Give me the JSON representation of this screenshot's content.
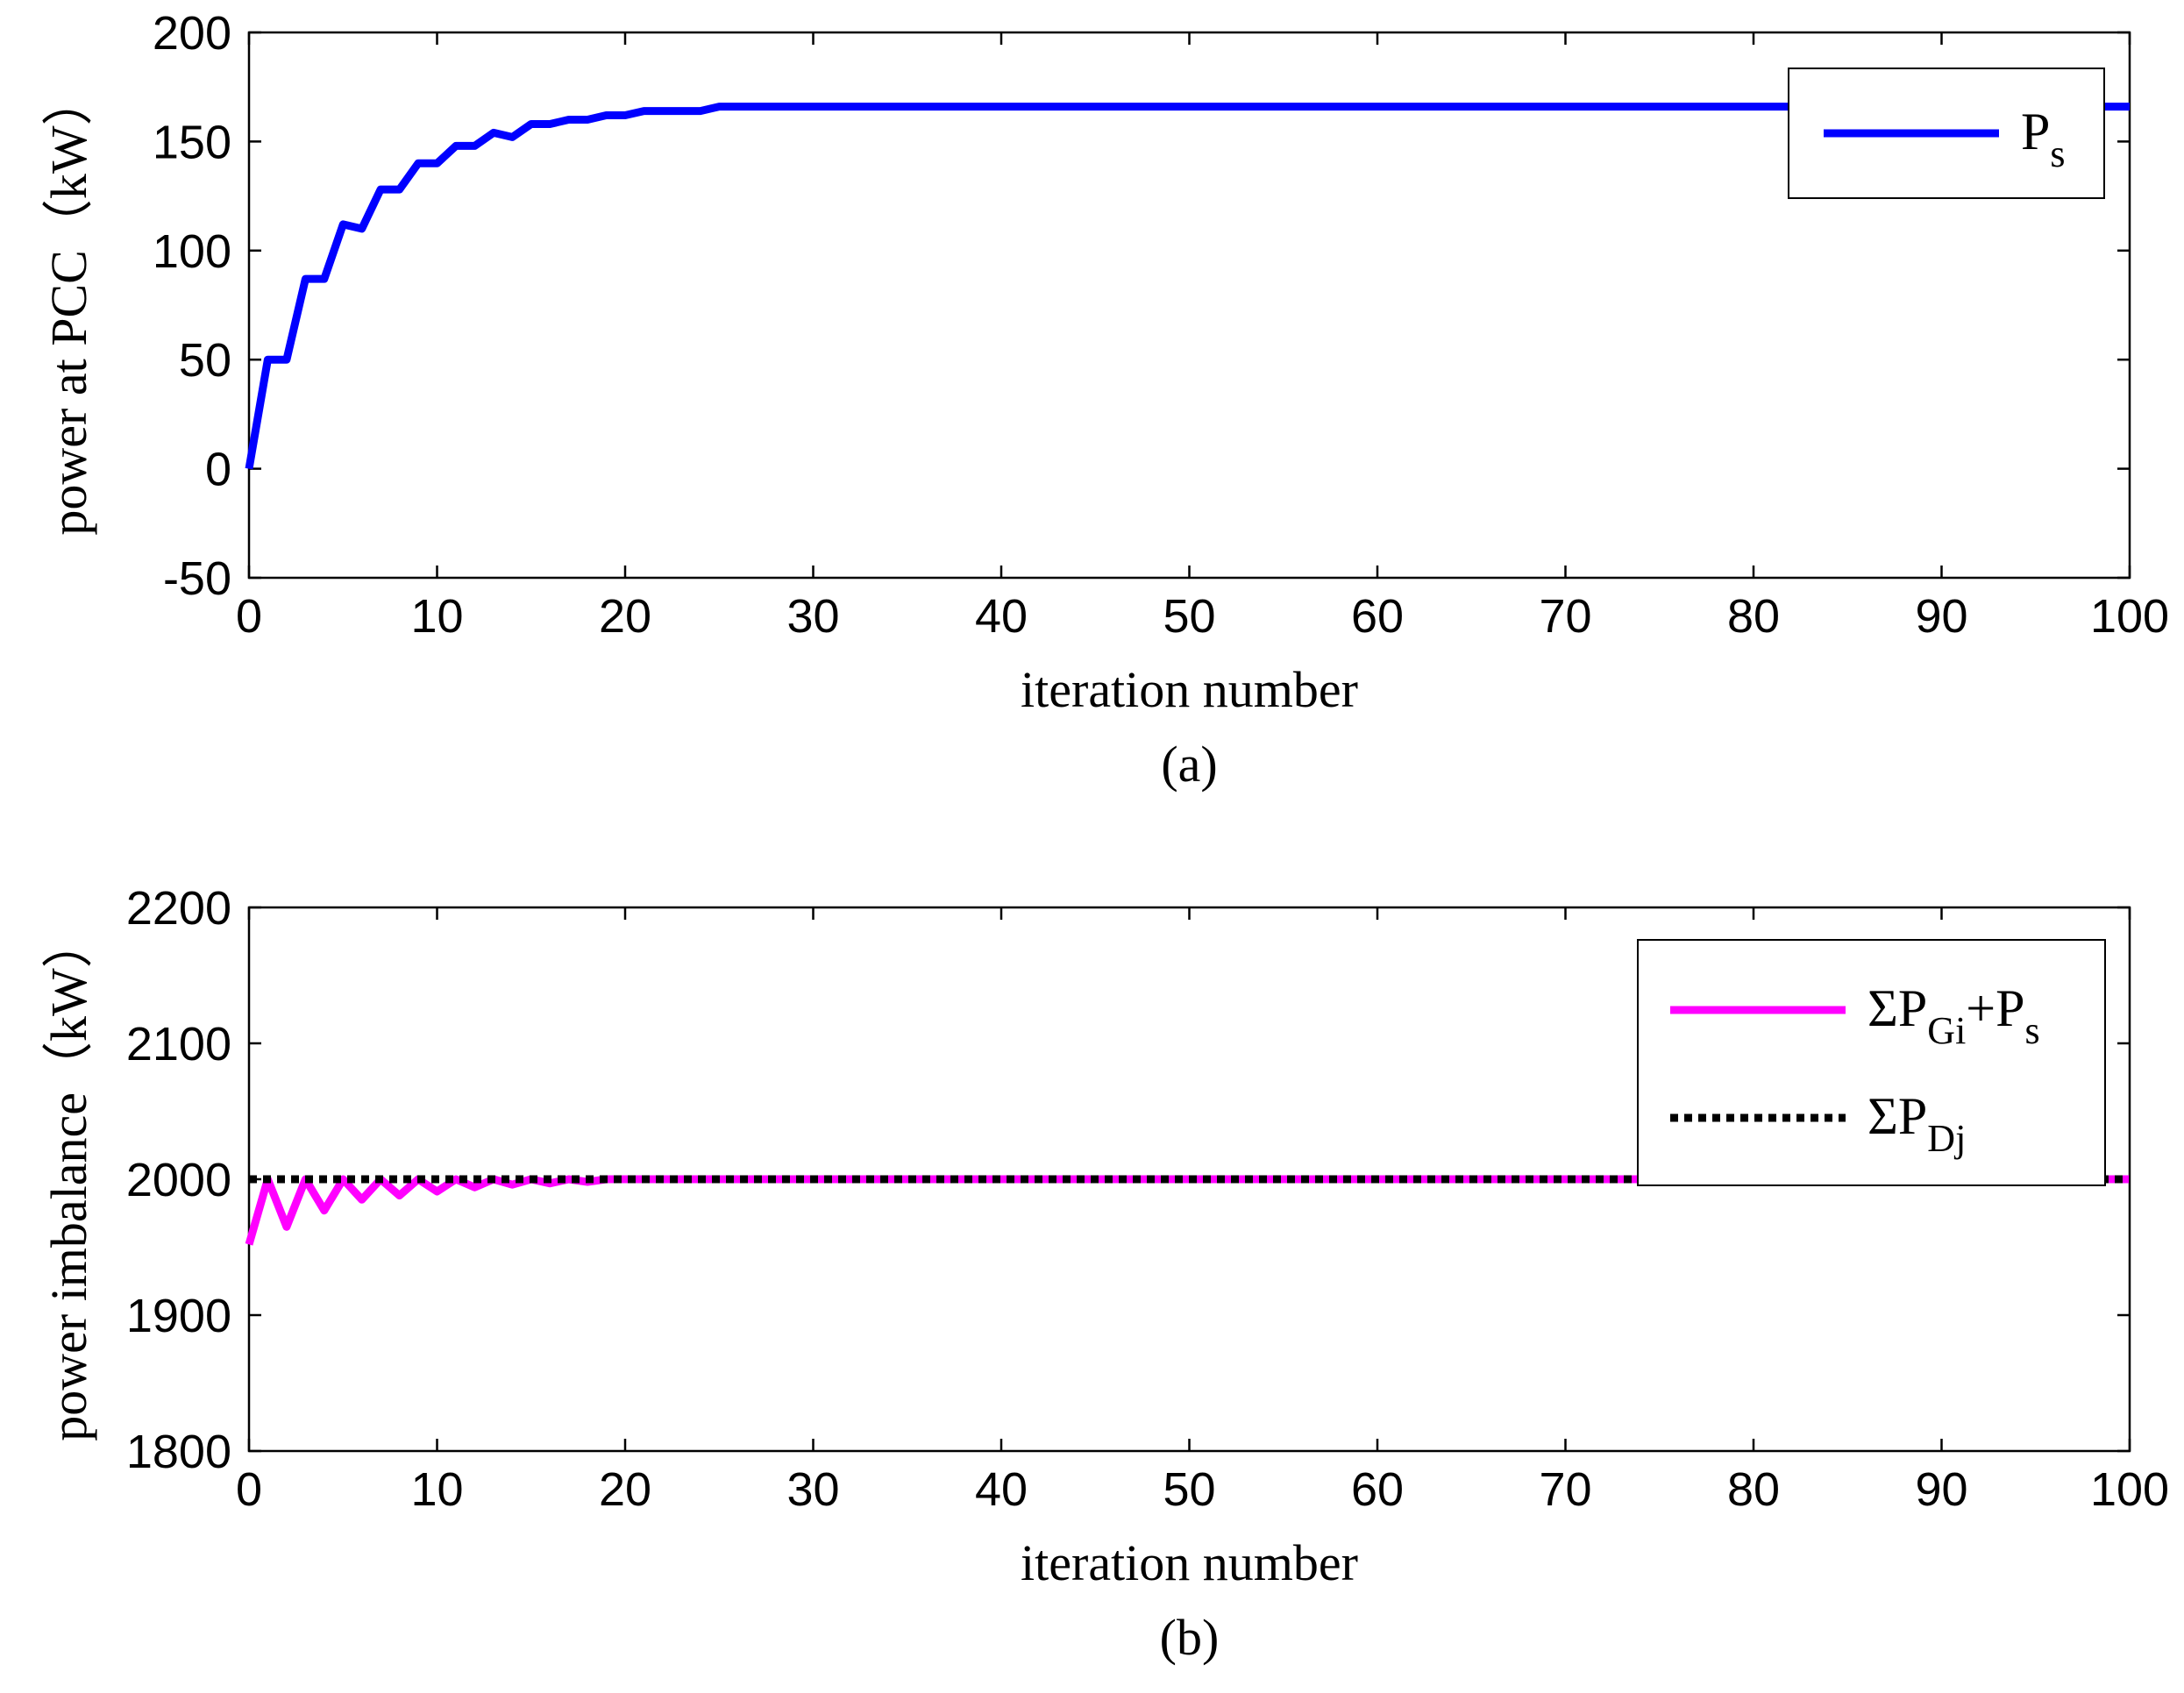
{
  "chart_data": [
    {
      "type": "line",
      "panel": "(a)",
      "xlabel": "iteration number",
      "ylabel": "power at PCC（kW）",
      "xlim": [
        0,
        100
      ],
      "ylim": [
        -50,
        200
      ],
      "xticks": [
        0,
        10,
        20,
        30,
        40,
        50,
        60,
        70,
        80,
        90,
        100
      ],
      "yticks": [
        -50,
        0,
        50,
        100,
        150,
        200
      ],
      "grid": false,
      "legend_position": "top-right",
      "series": [
        {
          "name": "P",
          "name_sub": "s",
          "color": "#0000ff",
          "dash": "solid",
          "x": [
            0,
            1,
            2,
            3,
            4,
            5,
            6,
            7,
            8,
            9,
            10,
            11,
            12,
            13,
            14,
            15,
            16,
            17,
            18,
            19,
            20,
            21,
            22,
            23,
            24,
            25,
            100
          ],
          "y": [
            0,
            50,
            50,
            87,
            87,
            112,
            110,
            128,
            128,
            140,
            140,
            148,
            148,
            154,
            152,
            158,
            158,
            160,
            160,
            162,
            162,
            164,
            164,
            164,
            164,
            166,
            166
          ]
        }
      ]
    },
    {
      "type": "line",
      "panel": "(b)",
      "xlabel": "iteration number",
      "ylabel": "power imbalance（kW）",
      "xlim": [
        0,
        100
      ],
      "ylim": [
        1800,
        2200
      ],
      "xticks": [
        0,
        10,
        20,
        30,
        40,
        50,
        60,
        70,
        80,
        90,
        100
      ],
      "yticks": [
        1800,
        1900,
        2000,
        2100,
        2200
      ],
      "grid": false,
      "legend_position": "top-right",
      "series": [
        {
          "name": "ΣP",
          "name_sub": "Gi",
          "name_suffix": "+P",
          "name_suffix_sub": "s",
          "color": "#ff00ff",
          "dash": "solid",
          "x": [
            0,
            1,
            2,
            3,
            4,
            5,
            6,
            7,
            8,
            9,
            10,
            11,
            12,
            13,
            14,
            15,
            16,
            17,
            18,
            19,
            20,
            100
          ],
          "y": [
            1952,
            2000,
            1965,
            2000,
            1977,
            2000,
            1985,
            2000,
            1988,
            2000,
            1991,
            2000,
            1994,
            2000,
            1996,
            2000,
            1997,
            2000,
            1998,
            2000,
            2000,
            2000
          ]
        },
        {
          "name": "ΣP",
          "name_sub": "Dj",
          "color": "#000000",
          "dash": "dotted",
          "x": [
            0,
            100
          ],
          "y": [
            2000,
            2000
          ]
        }
      ]
    }
  ]
}
